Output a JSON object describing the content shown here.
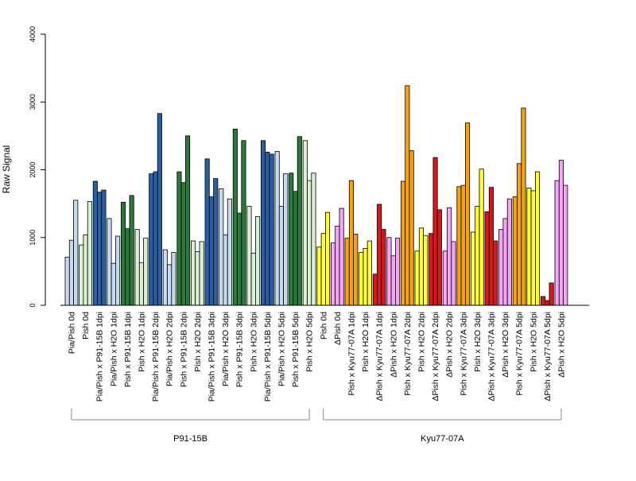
{
  "chart_data": {
    "type": "bar",
    "ylabel": "Raw Signal",
    "ylim": [
      0,
      4000
    ],
    "yticks": [
      "0",
      "1000",
      "2000",
      "3000",
      "4000"
    ],
    "groups": [
      {
        "label": "Pia/Pish 0d",
        "color": "#c6dbef",
        "values": [
          710,
          960,
          1550
        ]
      },
      {
        "label": "Pish 0d",
        "color": "#d9f0d3",
        "values": [
          890,
          1040,
          1530
        ]
      },
      {
        "label": "Pia/Pish x P91-15B 1dpi",
        "color": "#2b5fa5",
        "values": [
          1830,
          1670,
          1700
        ]
      },
      {
        "label": "Pia/Pish x H2O 1dpi",
        "color": "#c6dbef",
        "values": [
          1280,
          620,
          1020
        ]
      },
      {
        "label": "Pish x P91-15B 1dpi",
        "color": "#2a7a3a",
        "values": [
          1520,
          1130,
          1620
        ]
      },
      {
        "label": "Pish x H2O 1dpi",
        "color": "#d9f0d3",
        "values": [
          1120,
          630,
          990
        ]
      },
      {
        "label": "Pia/Pish x P91-15B 2dpi",
        "color": "#2b5fa5",
        "values": [
          1940,
          1970,
          2830
        ]
      },
      {
        "label": "Pia/Pish x H2O 2dpi",
        "color": "#c6dbef",
        "values": [
          820,
          600,
          780
        ]
      },
      {
        "label": "Pish x P91-15B 2dpi",
        "color": "#2a7a3a",
        "values": [
          1970,
          1810,
          2500
        ]
      },
      {
        "label": "Pish x H2O 2dpi",
        "color": "#d9f0d3",
        "values": [
          950,
          790,
          940
        ]
      },
      {
        "label": "Pia/Pish x P91-15B 3dpi",
        "color": "#2b5fa5",
        "values": [
          2160,
          1600,
          1870
        ]
      },
      {
        "label": "Pia/Pish x H2O 3dpi",
        "color": "#c6dbef",
        "values": [
          1720,
          1040,
          1570
        ]
      },
      {
        "label": "Pish x P91-15B 3dpi",
        "color": "#2a7a3a",
        "values": [
          2600,
          1360,
          2430
        ]
      },
      {
        "label": "Pish x H2O 3dpi",
        "color": "#d9f0d3",
        "values": [
          1460,
          770,
          1310
        ]
      },
      {
        "label": "Pia/Pish x P91-15B 5dpi",
        "color": "#2b5fa5",
        "values": [
          2430,
          2260,
          2230
        ]
      },
      {
        "label": "Pia/Pish x H2O 5dpi",
        "color": "#c6dbef",
        "values": [
          2270,
          1460,
          1940
        ]
      },
      {
        "label": "Pish x P91-15B 5dpi",
        "color": "#2a7a3a",
        "values": [
          1950,
          1680,
          2490
        ]
      },
      {
        "label": "Pish x H2O 5dpi",
        "color": "#d9f0d3",
        "values": [
          2430,
          1840,
          1950
        ]
      },
      {
        "label": "Pish 0d",
        "color": "#ffff33",
        "values": [
          860,
          1060,
          1370
        ]
      },
      {
        "label": "ΔPish 0d",
        "color": "#f4a6f4",
        "values": [
          920,
          1170,
          1430
        ]
      },
      {
        "label": "Pish x Kyu77-07A 1dpi",
        "color": "#f5a30f",
        "values": [
          990,
          1840,
          1050
        ]
      },
      {
        "label": "Pish x H2O 1dpi",
        "color": "#ffff33",
        "values": [
          780,
          840,
          950
        ]
      },
      {
        "label": "ΔPish x Kyu77-07A 1dpi",
        "color": "#d7191c",
        "values": [
          460,
          1490,
          1120
        ]
      },
      {
        "label": "ΔPish x H2O 1dpi",
        "color": "#f4a6f4",
        "values": [
          1000,
          730,
          990
        ]
      },
      {
        "label": "Pish x Kyu77-07A 2dpi",
        "color": "#f5a30f",
        "values": [
          1830,
          3240,
          2280
        ]
      },
      {
        "label": "Pish x H2O 2dpi",
        "color": "#ffff33",
        "values": [
          800,
          1140,
          1030
        ]
      },
      {
        "label": "ΔPish x Kyu77-07A 2dpi",
        "color": "#d7191c",
        "values": [
          1060,
          2180,
          1410
        ]
      },
      {
        "label": "ΔPish x H2O 2dpi",
        "color": "#f4a6f4",
        "values": [
          800,
          1440,
          940
        ]
      },
      {
        "label": "Pish x Kyu77-07A 3dpi",
        "color": "#f5a30f",
        "values": [
          1750,
          1770,
          2690
        ]
      },
      {
        "label": "Pish x H2O 3dpi",
        "color": "#ffff33",
        "values": [
          1080,
          1460,
          2010
        ]
      },
      {
        "label": "ΔPish x Kyu77-07A 3dpi",
        "color": "#d7191c",
        "values": [
          1380,
          1740,
          950
        ]
      },
      {
        "label": "ΔPish x H2O 3dpi",
        "color": "#f4a6f4",
        "values": [
          1120,
          1280,
          1570
        ]
      },
      {
        "label": "Pish x Kyu77-07A 5dpi",
        "color": "#f5a30f",
        "values": [
          1600,
          2090,
          2910
        ]
      },
      {
        "label": "Pish x H2O 5dpi",
        "color": "#ffff33",
        "values": [
          1730,
          1690,
          1970
        ]
      },
      {
        "label": "ΔPish x Kyu77-07A 5dpi",
        "color": "#d7191c",
        "values": [
          130,
          70,
          330
        ]
      },
      {
        "label": "ΔPish x H2O 5dpi",
        "color": "#f4a6f4",
        "values": [
          1840,
          2140,
          1770
        ]
      }
    ],
    "brackets": [
      {
        "label": "P91-15B",
        "from": 0,
        "to": 17
      },
      {
        "label": "Kyu77-07A",
        "from": 18,
        "to": 35
      }
    ]
  }
}
